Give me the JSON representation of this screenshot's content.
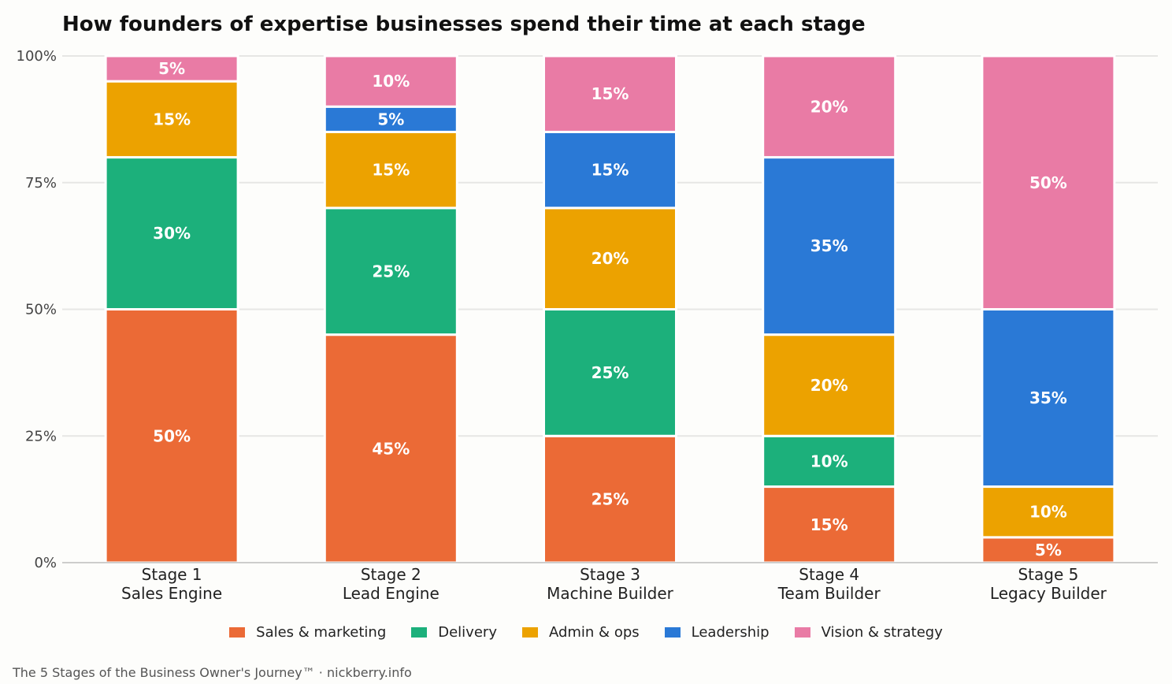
{
  "chart_data": {
    "type": "bar",
    "stacked": true,
    "title": "How founders of expertise businesses spend their time at each stage",
    "categories": [
      [
        "Stage 1",
        "Sales Engine"
      ],
      [
        "Stage 2",
        "Lead Engine"
      ],
      [
        "Stage 3",
        "Machine Builder"
      ],
      [
        "Stage 4",
        "Team Builder"
      ],
      [
        "Stage 5",
        "Legacy Builder"
      ]
    ],
    "series": [
      {
        "name": "Sales & marketing",
        "color": "#eb6a36",
        "values": [
          50,
          45,
          25,
          15,
          5
        ]
      },
      {
        "name": "Delivery",
        "color": "#1cb07b",
        "values": [
          30,
          25,
          25,
          10,
          0
        ]
      },
      {
        "name": "Admin & ops",
        "color": "#eca200",
        "values": [
          15,
          15,
          20,
          20,
          10
        ]
      },
      {
        "name": "Leadership",
        "color": "#2a79d6",
        "values": [
          0,
          5,
          15,
          35,
          35
        ]
      },
      {
        "name": "Vision & strategy",
        "color": "#e97ba5",
        "values": [
          5,
          10,
          15,
          20,
          50
        ]
      }
    ],
    "ylim": [
      0,
      100
    ],
    "yticks": [
      0,
      25,
      50,
      75,
      100
    ],
    "ytick_labels": [
      "0%",
      "25%",
      "50%",
      "75%",
      "100%"
    ],
    "value_suffix": "%",
    "grid": "horizontal",
    "legend": "bottom-center"
  },
  "footer": "The 5 Stages of the Business Owner's Journey™  ·  nickberry.info"
}
